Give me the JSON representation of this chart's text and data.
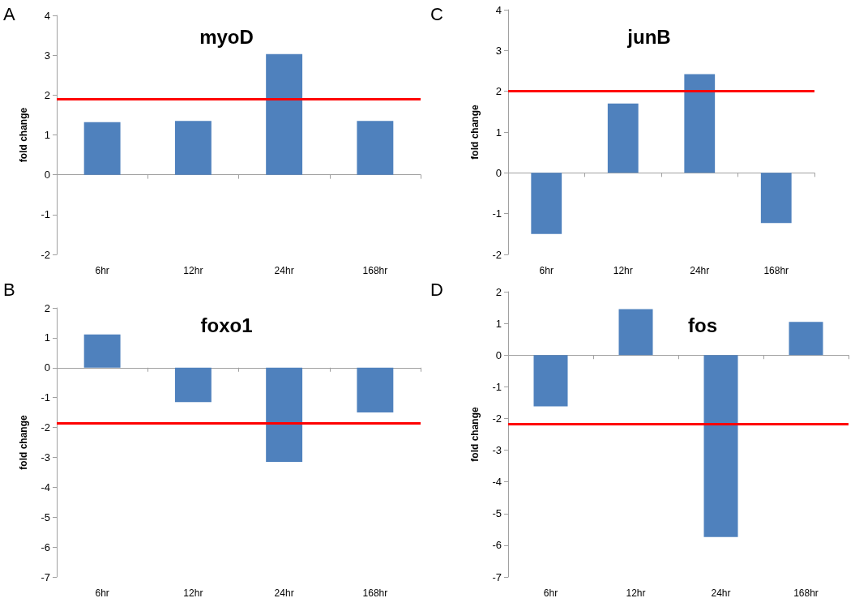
{
  "chart_data": [
    {
      "type": "bar",
      "title": "myoD",
      "ylabel": "fold change",
      "annotations": [
        "A"
      ],
      "categories": [
        "6hr",
        "12hr",
        "24hr",
        "168hr"
      ],
      "values": [
        1.32,
        1.35,
        3.03,
        1.35
      ],
      "color": "#4f81bd",
      "ylim": [
        -2,
        4
      ],
      "yticks": [
        -2,
        -1,
        0,
        1,
        2,
        3,
        4
      ],
      "ref_lines": [
        {
          "axis": "y",
          "value": 1.9,
          "color": "#ff0000"
        }
      ]
    },
    {
      "type": "bar",
      "title": "junB",
      "ylabel": "fold change",
      "annotations": [
        "C"
      ],
      "categories": [
        "6hr",
        "12hr",
        "24hr",
        "168hr"
      ],
      "values": [
        -1.5,
        1.7,
        2.42,
        -1.23
      ],
      "color": "#4f81bd",
      "ylim": [
        -2,
        4
      ],
      "yticks": [
        -2,
        -1,
        0,
        1,
        2,
        3,
        4
      ],
      "ref_lines": [
        {
          "axis": "y",
          "value": 2.0,
          "color": "#ff0000"
        }
      ]
    },
    {
      "type": "bar",
      "title": "foxo1",
      "ylabel": "fold change",
      "annotations": [
        "B"
      ],
      "categories": [
        "6hr",
        "12hr",
        "24hr",
        "168hr"
      ],
      "values": [
        1.11,
        -1.15,
        -3.15,
        -1.5
      ],
      "color": "#4f81bd",
      "ylim": [
        -7,
        2
      ],
      "yticks": [
        -7,
        -6,
        -5,
        -4,
        -3,
        -2,
        -1,
        0,
        1,
        2
      ],
      "ref_lines": [
        {
          "axis": "y",
          "value": -1.86,
          "color": "#ff0000"
        }
      ]
    },
    {
      "type": "bar",
      "title": "fos",
      "ylabel": "fold change",
      "annotations": [
        "D"
      ],
      "categories": [
        "6hr",
        "12hr",
        "24hr",
        "168hr"
      ],
      "values": [
        -1.62,
        1.45,
        -5.74,
        1.05
      ],
      "color": "#4f81bd",
      "ylim": [
        -7,
        2
      ],
      "yticks": [
        -7,
        -6,
        -5,
        -4,
        -3,
        -2,
        -1,
        0,
        1,
        2
      ],
      "ref_lines": [
        {
          "axis": "y",
          "value": -2.17,
          "color": "#ff0000"
        }
      ]
    }
  ]
}
